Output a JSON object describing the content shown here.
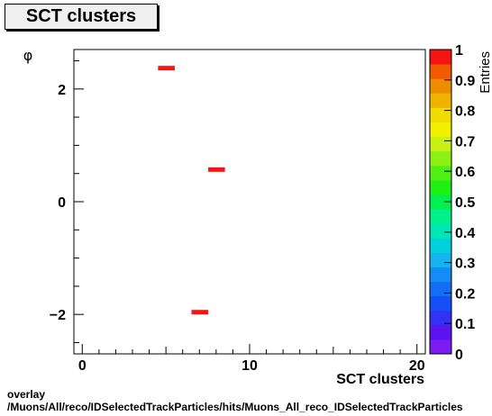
{
  "title": "SCT clusters",
  "caption_line1": "overlay",
  "caption_line2": "/Muons/All/reco/IDSelectedTrackParticles/hits/Muons_All_reco_IDSelectedTrackParticles",
  "chart_data": {
    "type": "heatmap",
    "title": "SCT clusters",
    "xlabel": "SCT clusters",
    "ylabel": "φ",
    "zlabel": "Entries",
    "xlim": [
      -0.5,
      20.5
    ],
    "ylim": [
      -2.7,
      2.7
    ],
    "zlim": [
      0,
      1
    ],
    "x_ticks": [
      0,
      10,
      20
    ],
    "y_ticks": [
      -2,
      0,
      2
    ],
    "z_ticks": [
      0,
      0.1,
      0.2,
      0.3,
      0.4,
      0.5,
      0.6,
      0.7,
      0.8,
      0.9,
      1
    ],
    "cells": [
      {
        "x": 5,
        "y": 2.37,
        "z": 1
      },
      {
        "x": 8,
        "y": 0.57,
        "z": 1
      },
      {
        "x": 7,
        "y": -1.96,
        "z": 1
      }
    ]
  }
}
